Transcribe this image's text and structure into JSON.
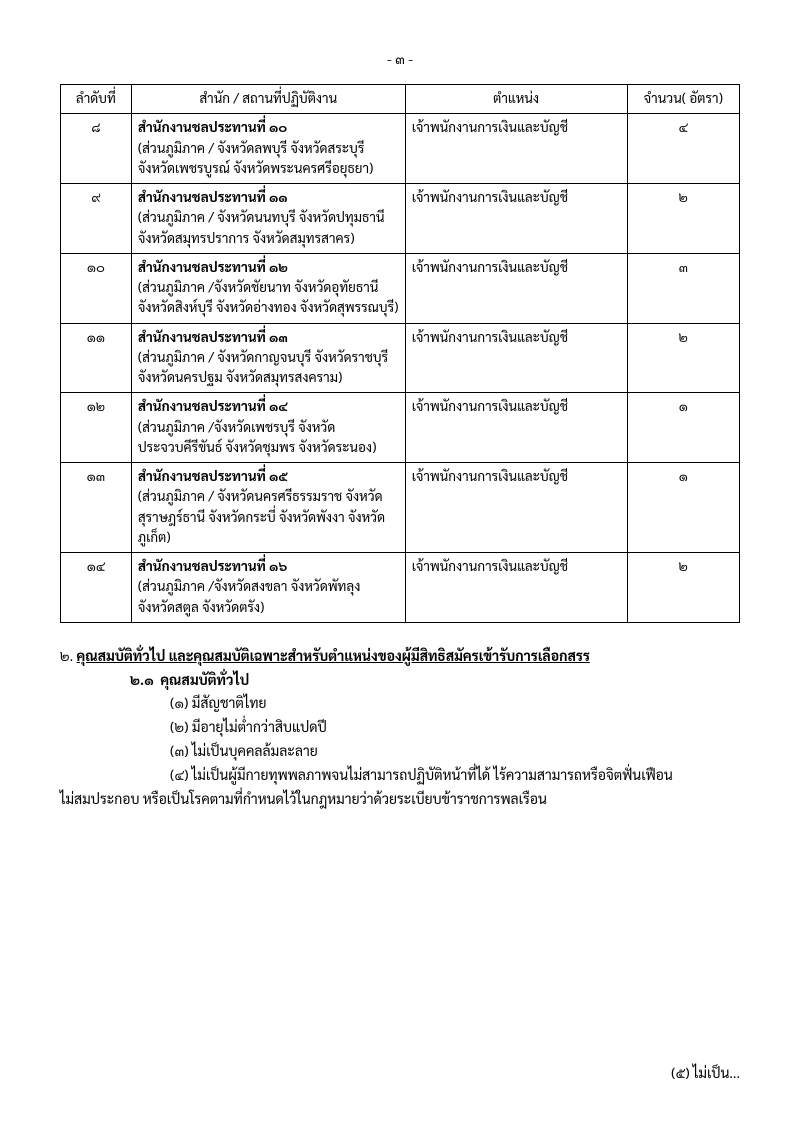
{
  "page_number": "- ๓ -",
  "table": {
    "headers": {
      "num": "ลำดับที่",
      "office": "สำนัก / สถานที่ปฏิบัติงาน",
      "position": "ตำแหน่ง",
      "count": "จำนวน( อัตรา)"
    },
    "rows": [
      {
        "num": "๘",
        "office_title": "สำนักงานชลประทานที่ ๑๐",
        "office_detail": "(ส่วนภูมิภาค / จังหวัดลพบุรี จังหวัดสระบุรี จังหวัดเพชรบูรณ์ จังหวัดพระนครศรีอยุธยา)",
        "position": "เจ้าพนักงานการเงินและบัญชี",
        "count": "๔"
      },
      {
        "num": "๙",
        "office_title": "สำนักงานชลประทานที่ ๑๑",
        "office_detail": "(ส่วนภูมิภาค / จังหวัดนนทบุรี จังหวัดปทุมธานี จังหวัดสมุทรปราการ จังหวัดสมุทรสาคร)",
        "position": "เจ้าพนักงานการเงินและบัญชี",
        "count": "๒"
      },
      {
        "num": "๑๐",
        "office_title": "สำนักงานชลประทานที่ ๑๒",
        "office_detail": "(ส่วนภูมิภาค /จังหวัดชัยนาท จังหวัดอุทัยธานี จังหวัดสิงห์บุรี จังหวัดอ่างทอง จังหวัดสุพรรณบุรี)",
        "position": "เจ้าพนักงานการเงินและบัญชี",
        "count": "๓"
      },
      {
        "num": "๑๑",
        "office_title": "สำนักงานชลประทานที่ ๑๓",
        "office_detail": "(ส่วนภูมิภาค / จังหวัดกาญจนบุรี จังหวัดราชบุรี จังหวัดนครปฐม จังหวัดสมุทรสงคราม)",
        "position": "เจ้าพนักงานการเงินและบัญชี",
        "count": "๒"
      },
      {
        "num": "๑๒",
        "office_title": "สำนักงานชลประทานที่ ๑๔",
        "office_detail": "(ส่วนภูมิภาค /จังหวัดเพชรบุรี จังหวัดประจวบคีรีขันธ์ จังหวัดชุมพร จังหวัดระนอง)",
        "position": "เจ้าพนักงานการเงินและบัญชี",
        "count": "๑"
      },
      {
        "num": "๑๓",
        "office_title": "สำนักงานชลประทานที่ ๑๕",
        "office_detail": "(ส่วนภูมิภาค / จังหวัดนครศรีธรรมราช จังหวัดสุราษฎร์ธานี จังหวัดกระบี่ จังหวัดพังงา จังหวัดภูเก็ต)",
        "position": "เจ้าพนักงานการเงินและบัญชี",
        "count": "๑"
      },
      {
        "num": "๑๔",
        "office_title": "สำนักงานชลประทานที่ ๑๖",
        "office_detail": "(ส่วนภูมิภาค /จังหวัดสงขลา จังหวัดพัทลุง จังหวัดสตูล จังหวัดตรัง)",
        "position": "เจ้าพนักงานการเงินและบัญชี",
        "count": "๒"
      }
    ]
  },
  "section": {
    "number": "๒.",
    "heading": "คุณสมบัติทั่วไป และคุณสมบัติเฉพาะสำหรับตำแหน่งของผู้มีสิทธิสมัครเข้ารับการเลือกสรร",
    "sub_number": "๒.๑",
    "sub_heading": "คุณสมบัติทั่วไป",
    "items": [
      {
        "num": "(๑)",
        "text": "มีสัญชาติไทย"
      },
      {
        "num": "(๒)",
        "text": "มีอายุไม่ต่ำกว่าสิบแปดปี"
      },
      {
        "num": "(๓)",
        "text": "ไม่เป็นบุคคลล้มละลาย"
      },
      {
        "num": "(๔)",
        "text": "ไม่เป็นผู้มีกายทุพพลภาพจนไม่สามารถปฏิบัติหน้าที่ได้ ไร้ความสามารถหรือจิตฟั่นเฟือน"
      }
    ],
    "continuation": "ไม่สมประกอบ หรือเป็นโรคตามที่กำหนดไว้ในกฎหมายว่าด้วยระเบียบข้าราชการพลเรือน"
  },
  "footer": "(๕) ไม่เป็น..."
}
